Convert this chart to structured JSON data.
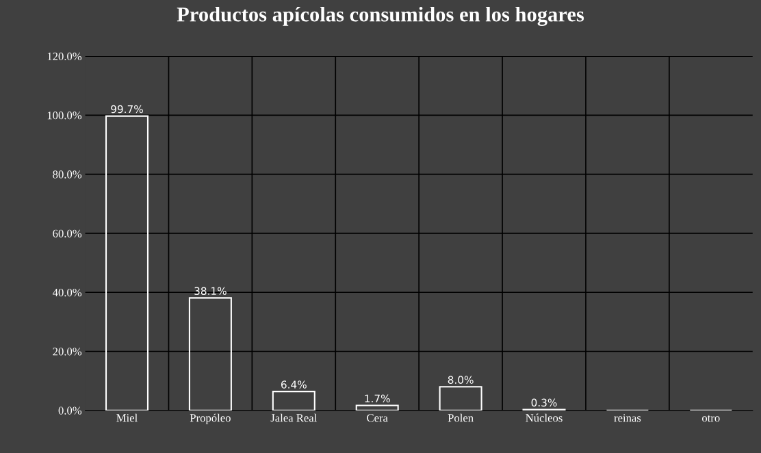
{
  "chart_data": {
    "type": "bar",
    "title": "Productos apícolas consumidos en los hogares",
    "categories": [
      "Miel",
      "Propóleo",
      "Jalea Real",
      "Cera",
      "Polen",
      "Núcleos",
      "reinas",
      "otro"
    ],
    "values": [
      99.7,
      38.1,
      6.4,
      1.7,
      8.0,
      0.3,
      0,
      0
    ],
    "value_labels": [
      "99.7%",
      "38.1%",
      "6.4%",
      "1.7%",
      "8.0%",
      "0.3%",
      null,
      null
    ],
    "color": "#ffffff",
    "ylim": [
      0,
      120
    ],
    "yticks": [
      {
        "value": 0,
        "label": "0.0%"
      },
      {
        "value": 20,
        "label": "20.0%"
      },
      {
        "value": 40,
        "label": "40.0%"
      },
      {
        "value": 60,
        "label": "60.0%"
      },
      {
        "value": 80,
        "label": "80.0%"
      },
      {
        "value": 100,
        "label": "100.0%"
      },
      {
        "value": 120,
        "label": "120.0%"
      }
    ],
    "grid": true,
    "legend": false
  }
}
